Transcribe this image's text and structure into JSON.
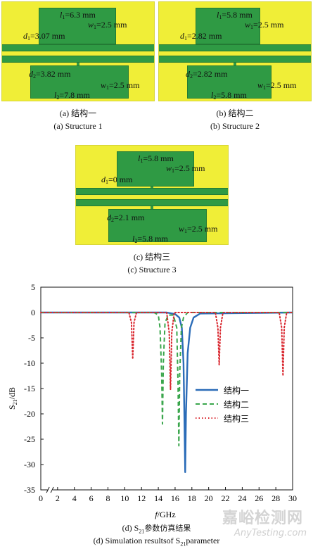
{
  "structures": [
    {
      "l1": "6.3 mm",
      "d1": "3.07 mm",
      "w1": "2.5 mm",
      "d2": "3.82 mm",
      "w2": "2.5 mm",
      "l2": "7.8 mm",
      "caption_cn": "(a) 结构一",
      "caption_en": "(a) Structure 1"
    },
    {
      "l1": "5.8 mm",
      "d1": "2.82 mm",
      "w1": "2.5 mm",
      "d2": "2.82 mm",
      "w2": "2.5 mm",
      "l2": "5.8 mm",
      "caption_cn": "(b) 结构二",
      "caption_en": "(b) Structure 2"
    },
    {
      "l1": "5.8 mm",
      "d1": "0 mm",
      "w1": "2.5 mm",
      "d2": "2.1 mm",
      "w2": "2.5 mm",
      "l2": "5.8 mm",
      "caption_cn": "(c) 结构三",
      "caption_en": "(c) Structure 3"
    }
  ],
  "chart_caption_cn": "(d) S21参数仿真结果",
  "chart_caption_en": "(d) Simulation resultsof S21parameter",
  "watermark": {
    "cn": "嘉峪检测网",
    "en": "AnyTesting.com"
  },
  "chart_data": {
    "type": "line",
    "xlabel": "f/GHz",
    "ylabel": "S21/dB",
    "xlim": [
      0,
      30
    ],
    "ylim": [
      -35,
      5
    ],
    "x_ticks": [
      0,
      2,
      4,
      6,
      8,
      10,
      12,
      14,
      16,
      18,
      20,
      22,
      24,
      26,
      28,
      30
    ],
    "y_ticks": [
      5,
      0,
      -5,
      -10,
      -15,
      -20,
      -25,
      -30,
      -35
    ],
    "axis_break": "x between 0 and ~8 GHz",
    "legend_position": "right-middle",
    "series": [
      {
        "name": "结构一",
        "color": "#2b6cb8",
        "style": "solid",
        "x": [
          0,
          15.0,
          16.0,
          16.5,
          16.8,
          17.0,
          17.1,
          17.2,
          17.3,
          17.5,
          17.8,
          18.2,
          19.0,
          30
        ],
        "y": [
          0,
          0,
          -0.3,
          -1.0,
          -3.0,
          -10.0,
          -20.0,
          -31.5,
          -20.0,
          -8.0,
          -3.0,
          -1.0,
          -0.2,
          0
        ]
      },
      {
        "name": "结构二",
        "color": "#3aa64c",
        "style": "dashed",
        "x": [
          0,
          13.5,
          14.0,
          14.2,
          14.4,
          14.5,
          14.6,
          14.8,
          15.2,
          15.8,
          16.2,
          16.35,
          16.45,
          16.55,
          16.75,
          17.0,
          17.5,
          30
        ],
        "y": [
          0,
          0,
          -0.5,
          -3.0,
          -12.0,
          -22.0,
          -10.0,
          -2.0,
          -0.5,
          -0.5,
          -3.0,
          -14.0,
          -26.3,
          -12.0,
          -3.0,
          -1.0,
          0,
          0
        ]
      },
      {
        "name": "结构三",
        "color": "#d9262e",
        "style": "dotted",
        "x": [
          0,
          10.5,
          10.8,
          10.95,
          11.1,
          11.4,
          15.0,
          15.3,
          15.45,
          15.6,
          15.9,
          20.8,
          21.1,
          21.25,
          21.4,
          21.7,
          28.4,
          28.7,
          28.85,
          29.0,
          29.3,
          30
        ],
        "y": [
          0,
          0,
          -2.0,
          -9.2,
          -2.0,
          0,
          0,
          -4.0,
          -15.2,
          -4.0,
          0,
          0,
          -3.0,
          -10.3,
          -3.0,
          0,
          0,
          -3.0,
          -12.5,
          -3.0,
          0,
          0
        ]
      }
    ]
  }
}
